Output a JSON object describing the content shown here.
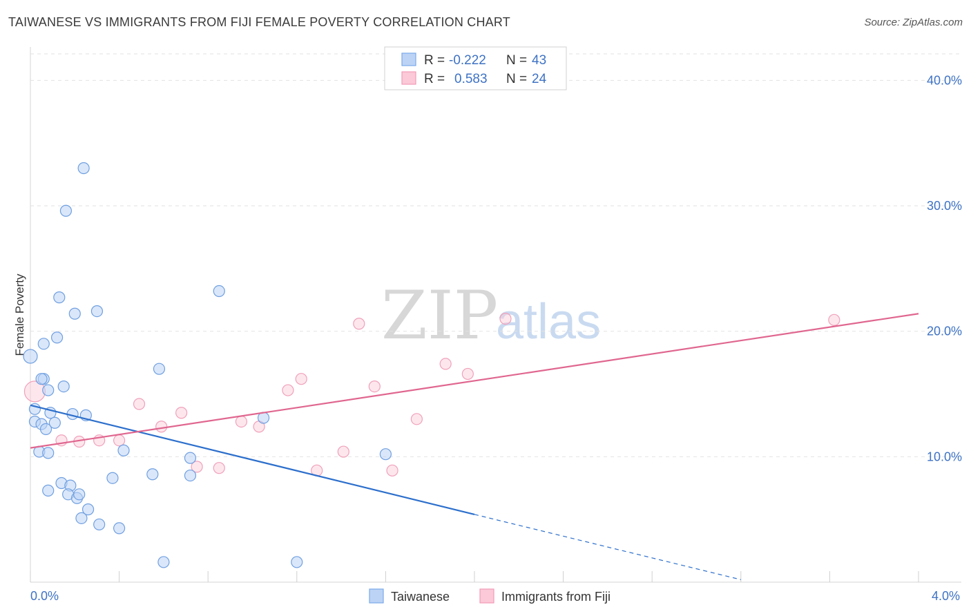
{
  "header": {
    "title": "TAIWANESE VS IMMIGRANTS FROM FIJI FEMALE POVERTY CORRELATION CHART",
    "source": "Source: ZipAtlas.com"
  },
  "watermark": {
    "zip": "ZIP",
    "atlas": "atlas"
  },
  "legend": {
    "rows": [
      {
        "r_label": "R =",
        "r_value": "-0.222",
        "n_label": "N =",
        "n_value": "43"
      },
      {
        "r_label": "R =",
        "r_value": "0.583",
        "n_label": "N =",
        "n_value": "24"
      }
    ]
  },
  "bottom_legend": {
    "series1": "Taiwanese",
    "series2": "Immigrants from Fiji"
  },
  "chart_data": {
    "type": "scatter",
    "title": "TAIWANESE VS IMMIGRANTS FROM FIJI FEMALE POVERTY CORRELATION CHART",
    "xlabel": "",
    "ylabel": "Female Poverty",
    "xlim": [
      0,
      4.0
    ],
    "ylim": [
      0,
      42
    ],
    "x_tick_labels": [
      "0.0%",
      "4.0%"
    ],
    "y_ticks": [
      10,
      20,
      30,
      40
    ],
    "y_tick_labels": [
      "10.0%",
      "20.0%",
      "30.0%",
      "40.0%"
    ],
    "grid": true,
    "colors": {
      "taiwanese": "#7aaae8",
      "fiji": "#f29bb7",
      "taiwanese_line": "#2c6fcc",
      "fiji_line": "#e0668f"
    },
    "series": [
      {
        "name": "Taiwanese",
        "points": [
          [
            0.0,
            18.0
          ],
          [
            0.06,
            16.2
          ],
          [
            0.02,
            13.8
          ],
          [
            0.02,
            12.8
          ],
          [
            0.04,
            10.4
          ],
          [
            0.05,
            12.6
          ],
          [
            0.07,
            12.2
          ],
          [
            0.08,
            10.3
          ],
          [
            0.09,
            13.5
          ],
          [
            0.11,
            12.7
          ],
          [
            0.06,
            19.0
          ],
          [
            0.12,
            19.5
          ],
          [
            0.13,
            22.7
          ],
          [
            0.15,
            15.6
          ],
          [
            0.08,
            15.3
          ],
          [
            0.2,
            21.4
          ],
          [
            0.3,
            21.6
          ],
          [
            0.24,
            33.0
          ],
          [
            0.16,
            29.6
          ],
          [
            0.19,
            13.4
          ],
          [
            0.25,
            13.3
          ],
          [
            0.14,
            7.9
          ],
          [
            0.18,
            7.7
          ],
          [
            0.08,
            7.3
          ],
          [
            0.17,
            7.0
          ],
          [
            0.21,
            6.7
          ],
          [
            0.22,
            7.0
          ],
          [
            0.26,
            5.8
          ],
          [
            0.23,
            5.1
          ],
          [
            0.31,
            4.6
          ],
          [
            0.37,
            8.3
          ],
          [
            0.4,
            4.3
          ],
          [
            0.42,
            10.5
          ],
          [
            0.55,
            8.6
          ],
          [
            0.58,
            17.0
          ],
          [
            0.72,
            9.9
          ],
          [
            0.72,
            8.5
          ],
          [
            0.85,
            23.2
          ],
          [
            1.05,
            13.1
          ],
          [
            1.6,
            10.2
          ],
          [
            0.6,
            1.6
          ],
          [
            1.2,
            1.6
          ],
          [
            0.05,
            16.2
          ]
        ],
        "trend": {
          "x_start": 0.0,
          "y_start": 14.1,
          "x_end": 2.0,
          "y_end": 5.4,
          "dash_x_end": 3.2,
          "dash_y_end": 0.2
        }
      },
      {
        "name": "Immigrants from Fiji",
        "points": [
          [
            0.02,
            15.2
          ],
          [
            0.14,
            11.3
          ],
          [
            0.22,
            11.2
          ],
          [
            0.31,
            11.3
          ],
          [
            0.4,
            11.3
          ],
          [
            0.49,
            14.2
          ],
          [
            0.59,
            12.4
          ],
          [
            0.68,
            13.5
          ],
          [
            0.75,
            9.2
          ],
          [
            0.85,
            9.1
          ],
          [
            0.95,
            12.8
          ],
          [
            1.03,
            12.4
          ],
          [
            1.16,
            15.3
          ],
          [
            1.22,
            16.2
          ],
          [
            1.29,
            8.9
          ],
          [
            1.41,
            10.4
          ],
          [
            1.48,
            20.6
          ],
          [
            1.55,
            15.6
          ],
          [
            1.63,
            8.9
          ],
          [
            1.74,
            13.0
          ],
          [
            1.87,
            17.4
          ],
          [
            1.97,
            16.6
          ],
          [
            2.14,
            21.0
          ],
          [
            3.62,
            20.9
          ]
        ],
        "trend": {
          "x_start": 0.0,
          "y_start": 10.7,
          "x_end": 4.0,
          "y_end": 21.4
        }
      }
    ]
  }
}
